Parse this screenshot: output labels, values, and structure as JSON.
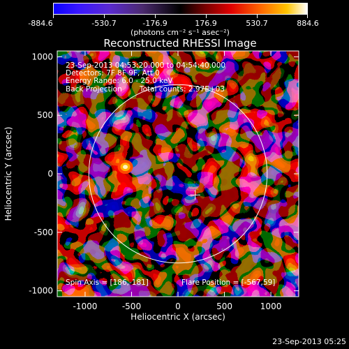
{
  "colorbar": {
    "ticks": [
      "-884.6",
      "-530.7",
      "-176.9",
      "176.9",
      "530.7",
      "884.6"
    ],
    "units": "(photons cm⁻² s⁻¹ asec⁻²)"
  },
  "chart_data": {
    "type": "heatmap",
    "title": "Reconstructed RHESSI Image",
    "xlabel": "Heliocentric X (arcsec)",
    "ylabel": "Heliocentric Y (arcsec)",
    "xlim": [
      -1300,
      1300
    ],
    "ylim": [
      -1050,
      1050
    ],
    "xticks": [
      -1000,
      -500,
      0,
      500,
      1000
    ],
    "yticks": [
      -1000,
      -500,
      0,
      500,
      1000
    ],
    "value_range": [
      -884.6,
      884.6
    ],
    "colormap": "blue-purple-black-red-yellow-white",
    "solar_limb_radius_arcsec": 960,
    "annotations": {
      "time_range": "23-Sep-2013 04:53:20.000 to 04:54:40.000",
      "detectors": "Detectors: 7F 8F 9F, Att 0",
      "energy": "Energy Range: 6.0 - 25.0 keV",
      "method": "Back Projection",
      "counts": "Total counts: 2.97E+03",
      "spin_axis": "Spin Axis = [186,-181]",
      "flare_position": "Flare Position = [-567,59]"
    },
    "spin_axis": [
      186,
      -181
    ],
    "flare_position": [
      -567,
      59
    ]
  },
  "footer": "23-Sep-2013 05:25"
}
